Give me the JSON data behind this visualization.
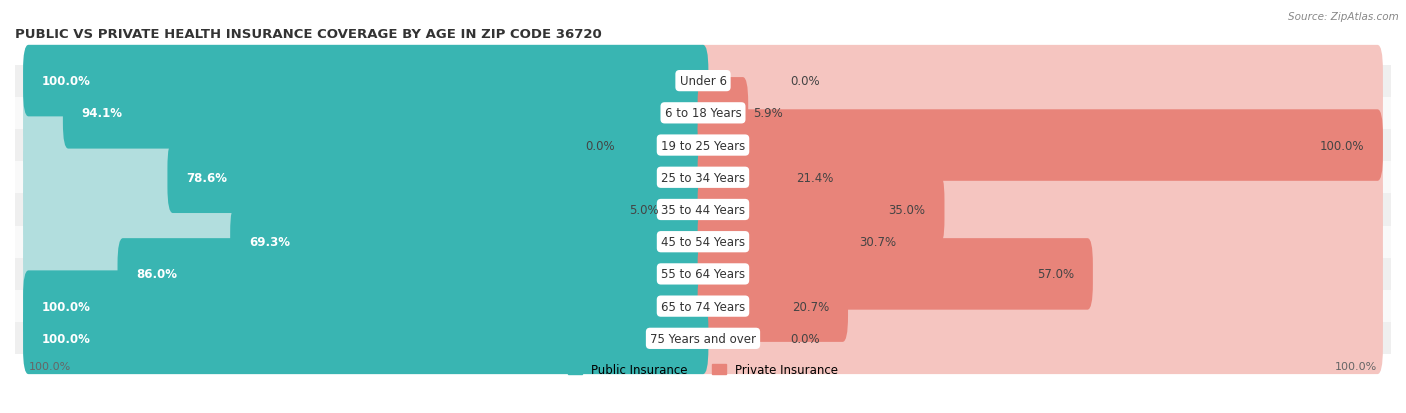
{
  "title": "PUBLIC VS PRIVATE HEALTH INSURANCE COVERAGE BY AGE IN ZIP CODE 36720",
  "source": "Source: ZipAtlas.com",
  "categories": [
    "Under 6",
    "6 to 18 Years",
    "19 to 25 Years",
    "25 to 34 Years",
    "35 to 44 Years",
    "45 to 54 Years",
    "55 to 64 Years",
    "65 to 74 Years",
    "75 Years and over"
  ],
  "public_values": [
    100.0,
    94.1,
    0.0,
    78.6,
    5.0,
    69.3,
    86.0,
    100.0,
    100.0
  ],
  "private_values": [
    0.0,
    5.9,
    100.0,
    21.4,
    35.0,
    30.7,
    57.0,
    20.7,
    0.0
  ],
  "public_color": "#39b5b2",
  "private_color": "#e8847a",
  "public_color_light": "#b2dede",
  "private_color_light": "#f5c5c0",
  "row_colors": [
    "#efefef",
    "#f9f9f9",
    "#efefef",
    "#f9f9f9",
    "#efefef",
    "#f9f9f9",
    "#efefef",
    "#f9f9f9",
    "#efefef"
  ],
  "label_fontsize": 8.5,
  "title_fontsize": 9.5,
  "figsize": [
    14.06,
    4.14
  ],
  "dpi": 100
}
